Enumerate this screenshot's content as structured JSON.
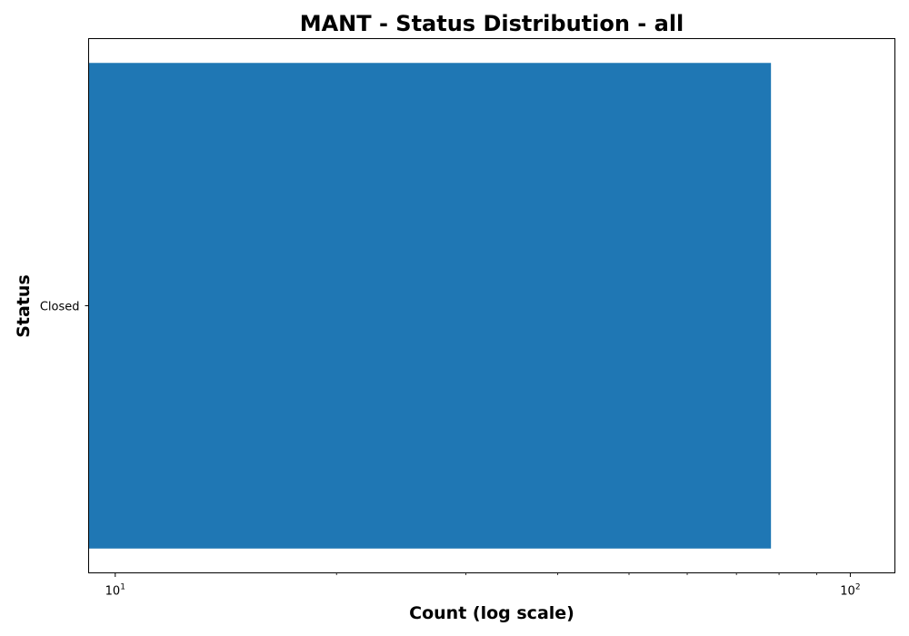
{
  "chart_data": {
    "type": "bar",
    "orientation": "horizontal",
    "title": "MANT - Status Distribution - all",
    "xlabel": "Count (log scale)",
    "ylabel": "Status",
    "x_scale": "log",
    "xlim": [
      9.2,
      115
    ],
    "categories": [
      "Closed"
    ],
    "values": [
      78
    ],
    "bar_color": "#1f77b4",
    "grid": false,
    "x_ticks": [
      {
        "value": 10,
        "base": "10",
        "exp": "1"
      },
      {
        "value": 100,
        "base": "10",
        "exp": "2"
      }
    ]
  }
}
